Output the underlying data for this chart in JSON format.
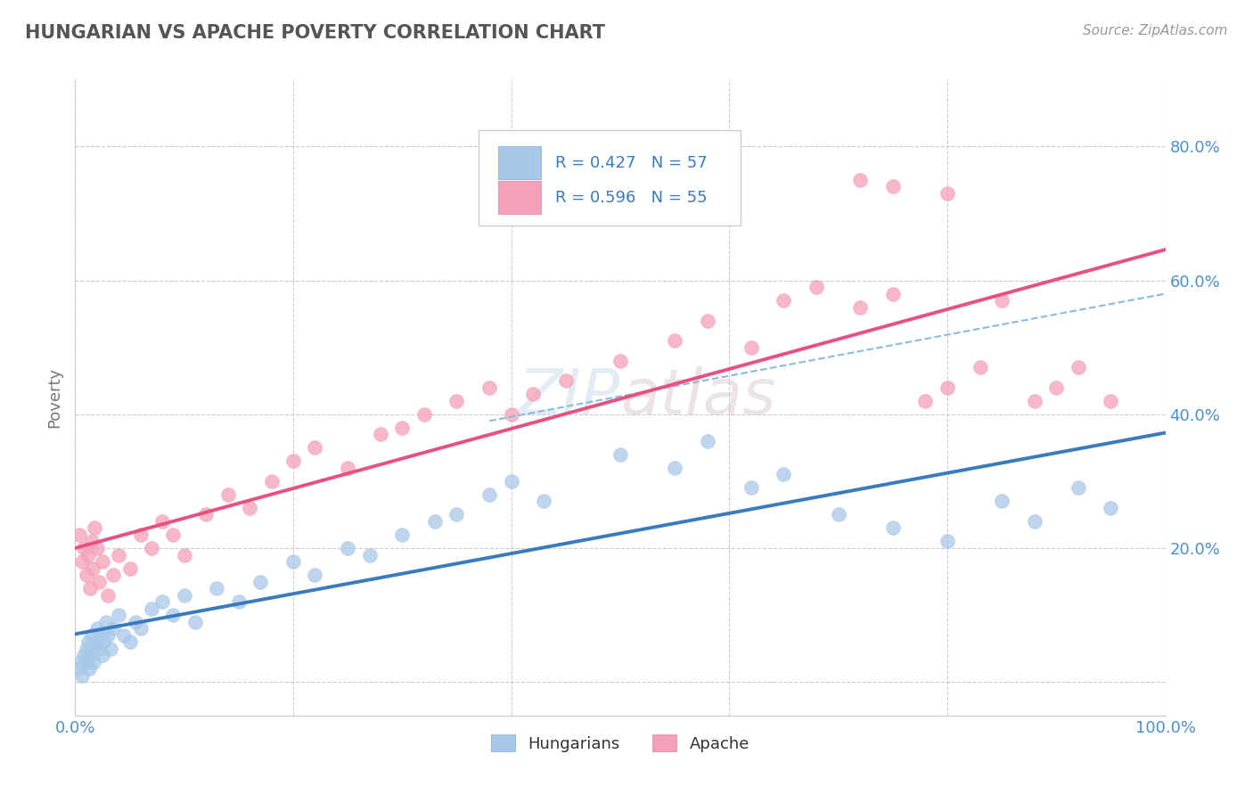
{
  "title": "HUNGARIAN VS APACHE POVERTY CORRELATION CHART",
  "source": "Source: ZipAtlas.com",
  "ylabel": "Poverty",
  "legend_blue_r": "R = 0.427",
  "legend_blue_n": "N = 57",
  "legend_pink_r": "R = 0.596",
  "legend_pink_n": "N = 55",
  "legend_label1": "Hungarians",
  "legend_label2": "Apache",
  "blue_scatter_color": "#a8c8e8",
  "pink_scatter_color": "#f4a0b8",
  "blue_line_color": "#3a7bbf",
  "pink_line_color": "#e85080",
  "dashed_line_color": "#88bbdd",
  "grid_color": "#cccccc",
  "background_color": "#ffffff",
  "title_color": "#555555",
  "tick_color": "#4a90d0",
  "xlim": [
    0,
    100
  ],
  "ylim": [
    -5,
    90
  ],
  "blue_x": [
    0.3,
    0.5,
    0.6,
    0.8,
    1.0,
    1.1,
    1.2,
    1.3,
    1.4,
    1.5,
    1.6,
    1.7,
    1.8,
    2.0,
    2.2,
    2.4,
    2.5,
    2.6,
    2.8,
    3.0,
    3.2,
    3.5,
    4.0,
    4.5,
    5.0,
    5.5,
    6.0,
    7.0,
    8.0,
    9.0,
    10.0,
    11.0,
    13.0,
    15.0,
    17.0,
    20.0,
    22.0,
    25.0,
    27.0,
    30.0,
    33.0,
    35.0,
    38.0,
    40.0,
    43.0,
    50.0,
    55.0,
    58.0,
    62.0,
    65.0,
    70.0,
    75.0,
    80.0,
    85.0,
    88.0,
    92.0,
    95.0
  ],
  "blue_y": [
    2,
    3,
    1,
    4,
    5,
    3,
    6,
    2,
    4,
    7,
    5,
    3,
    6,
    8,
    5,
    7,
    4,
    6,
    9,
    7,
    5,
    8,
    10,
    7,
    6,
    9,
    8,
    11,
    12,
    10,
    13,
    9,
    14,
    12,
    15,
    18,
    16,
    20,
    19,
    22,
    24,
    25,
    28,
    30,
    27,
    34,
    32,
    36,
    29,
    31,
    25,
    23,
    21,
    27,
    24,
    29,
    26
  ],
  "pink_x": [
    0.4,
    0.6,
    0.8,
    1.0,
    1.2,
    1.4,
    1.5,
    1.6,
    1.8,
    2.0,
    2.2,
    2.5,
    3.0,
    3.5,
    4.0,
    5.0,
    6.0,
    7.0,
    8.0,
    9.0,
    10.0,
    12.0,
    14.0,
    16.0,
    18.0,
    20.0,
    22.0,
    25.0,
    28.0,
    30.0,
    32.0,
    35.0,
    38.0,
    40.0,
    42.0,
    45.0,
    50.0,
    55.0,
    58.0,
    62.0,
    65.0,
    68.0,
    72.0,
    75.0,
    78.0,
    80.0,
    83.0,
    85.0,
    88.0,
    90.0,
    92.0,
    95.0,
    72.0,
    75.0,
    80.0
  ],
  "pink_y": [
    22,
    18,
    20,
    16,
    19,
    14,
    21,
    17,
    23,
    20,
    15,
    18,
    13,
    16,
    19,
    17,
    22,
    20,
    24,
    22,
    19,
    25,
    28,
    26,
    30,
    33,
    35,
    32,
    37,
    38,
    40,
    42,
    44,
    40,
    43,
    45,
    48,
    51,
    54,
    50,
    57,
    59,
    56,
    58,
    42,
    44,
    47,
    57,
    42,
    44,
    47,
    42,
    75,
    74,
    73
  ]
}
